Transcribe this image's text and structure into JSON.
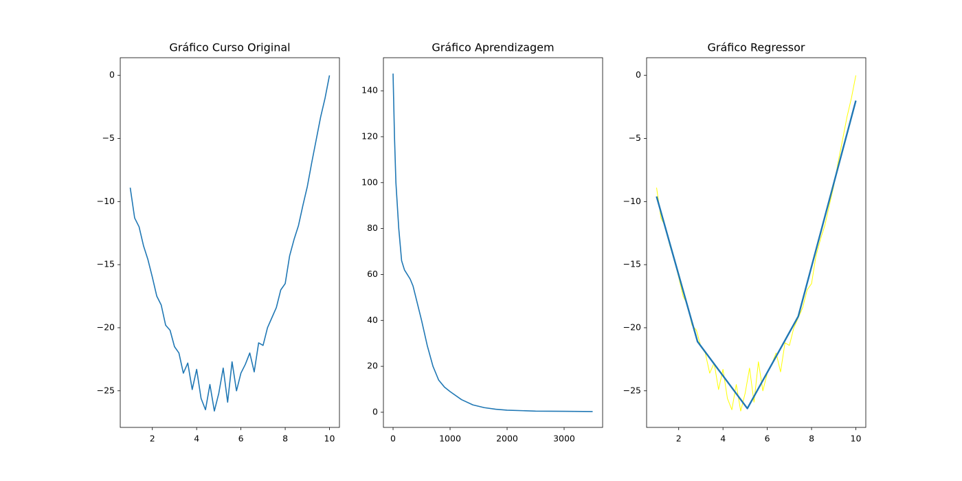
{
  "chart_data": [
    {
      "type": "line",
      "title": "Gráfico Curso Original",
      "color": "#1f77b4",
      "linewidth": 1.6,
      "x": [
        1.0,
        1.2,
        1.4,
        1.6,
        1.8,
        2.0,
        2.2,
        2.4,
        2.6,
        2.8,
        3.0,
        3.2,
        3.4,
        3.6,
        3.8,
        4.0,
        4.2,
        4.4,
        4.6,
        4.8,
        5.0,
        5.2,
        5.4,
        5.6,
        5.8,
        6.0,
        6.2,
        6.4,
        6.6,
        6.8,
        7.0,
        7.2,
        7.4,
        7.6,
        7.8,
        8.0,
        8.2,
        8.4,
        8.6,
        8.8,
        9.0,
        9.2,
        9.4,
        9.6,
        9.8,
        10.0
      ],
      "values": [
        -8.9,
        -11.3,
        -12.0,
        -13.5,
        -14.6,
        -16.0,
        -17.5,
        -18.2,
        -19.8,
        -20.2,
        -21.5,
        -22.0,
        -23.6,
        -22.8,
        -24.9,
        -23.3,
        -25.6,
        -26.5,
        -24.5,
        -26.6,
        -25.2,
        -23.2,
        -25.9,
        -22.7,
        -25.0,
        -23.6,
        -22.9,
        -22.0,
        -23.5,
        -21.2,
        -21.4,
        -20.0,
        -19.2,
        -18.4,
        -17.0,
        -16.5,
        -14.3,
        -13.0,
        -11.9,
        -10.3,
        -8.8,
        -6.9,
        -5.1,
        -3.3,
        -1.8,
        0
      ],
      "xlim": [
        0.55,
        10.45
      ],
      "ylim": [
        -27.9,
        1.4
      ],
      "xticks": [
        2,
        4,
        6,
        8,
        10
      ],
      "yticks": [
        0,
        {
          "value": -5,
          "label": "−5"
        },
        {
          "value": -10,
          "label": "−10"
        },
        {
          "value": -15,
          "label": "−15"
        },
        {
          "value": -20,
          "label": "−20"
        },
        {
          "value": -25,
          "label": "−25"
        }
      ]
    },
    {
      "type": "line",
      "title": "Gráfico Aprendizagem",
      "color": "#1f77b4",
      "linewidth": 1.6,
      "x": [
        0,
        25,
        50,
        100,
        150,
        200,
        250,
        300,
        350,
        400,
        500,
        600,
        700,
        800,
        900,
        1000,
        1200,
        1400,
        1600,
        1800,
        2000,
        2500,
        3000,
        3500
      ],
      "values": [
        147.5,
        120,
        100,
        80,
        66,
        62,
        60,
        58,
        55,
        50,
        40,
        29,
        20,
        14,
        11,
        9,
        5.5,
        3.2,
        2,
        1.3,
        0.9,
        0.5,
        0.4,
        0.3
      ],
      "xlim": [
        -169,
        3675
      ],
      "ylim": [
        -6.6,
        154.4
      ],
      "xticks": [
        0,
        1000,
        2000,
        3000
      ],
      "yticks": [
        0,
        20,
        40,
        60,
        80,
        100,
        120,
        140
      ]
    },
    {
      "type": "line",
      "title": "Gráfico Regressor",
      "series": [
        {
          "color": "#ffff00",
          "linewidth": 1,
          "x": [
            1.0,
            1.2,
            1.4,
            1.6,
            1.8,
            2.0,
            2.2,
            2.4,
            2.6,
            2.8,
            3.0,
            3.2,
            3.4,
            3.6,
            3.8,
            4.0,
            4.2,
            4.4,
            4.6,
            4.8,
            5.0,
            5.2,
            5.4,
            5.6,
            5.8,
            6.0,
            6.2,
            6.4,
            6.6,
            6.8,
            7.0,
            7.2,
            7.4,
            7.6,
            7.8,
            8.0,
            8.2,
            8.4,
            8.6,
            8.8,
            9.0,
            9.2,
            9.4,
            9.6,
            9.8,
            10.0
          ],
          "values": [
            -8.9,
            -11.3,
            -12.0,
            -13.5,
            -14.6,
            -16.0,
            -17.5,
            -18.2,
            -19.8,
            -20.2,
            -21.5,
            -22.0,
            -23.6,
            -22.8,
            -24.9,
            -23.3,
            -25.6,
            -26.5,
            -24.5,
            -26.6,
            -25.2,
            -23.2,
            -25.9,
            -22.7,
            -25.0,
            -23.6,
            -22.9,
            -22.0,
            -23.5,
            -21.2,
            -21.4,
            -20.0,
            -19.2,
            -18.4,
            -17.0,
            -16.5,
            -14.3,
            -13.0,
            -11.9,
            -10.3,
            -8.8,
            -6.9,
            -5.1,
            -3.3,
            -1.8,
            0
          ]
        },
        {
          "color": "#1f77b4",
          "linewidth": 2.4,
          "x": [
            1.0,
            2.85,
            5.1,
            7.4,
            10.0
          ],
          "values": [
            -9.6,
            -21.1,
            -26.4,
            -19.1,
            -2.0
          ]
        }
      ],
      "xlim": [
        0.55,
        10.45
      ],
      "ylim": [
        -27.9,
        1.4
      ],
      "xticks": [
        2,
        4,
        6,
        8,
        10
      ],
      "yticks": [
        0,
        {
          "value": -5,
          "label": "−5"
        },
        {
          "value": -10,
          "label": "−10"
        },
        {
          "value": -15,
          "label": "−15"
        },
        {
          "value": -20,
          "label": "−20"
        },
        {
          "value": -25,
          "label": "−25"
        }
      ]
    }
  ]
}
